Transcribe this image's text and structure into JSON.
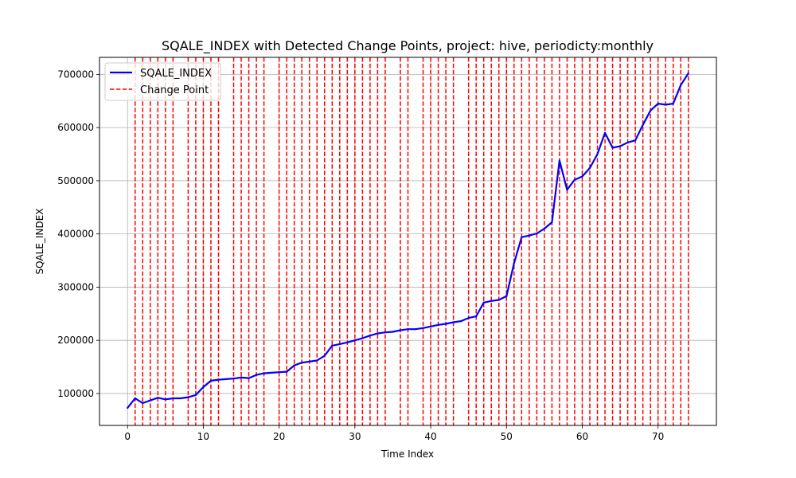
{
  "chart_data": {
    "type": "line",
    "title": "SQALE_INDEX with Detected Change Points, project: hive, periodicty:monthly",
    "xlabel": "Time Index",
    "ylabel": "SQALE_INDEX",
    "xlim": [
      -3.7,
      77.7
    ],
    "ylim": [
      40000,
      732000
    ],
    "x_ticks": [
      0,
      10,
      20,
      30,
      40,
      50,
      60,
      70
    ],
    "y_ticks": [
      100000,
      200000,
      300000,
      400000,
      500000,
      600000,
      700000
    ],
    "y_tick_labels": [
      "100000",
      "200000",
      "300000",
      "400000",
      "500000",
      "600000",
      "700000"
    ],
    "x_tick_labels": [
      "0",
      "10",
      "20",
      "30",
      "40",
      "50",
      "60",
      "70"
    ],
    "grid": true,
    "legend_position": "top-left",
    "series": [
      {
        "name": "SQALE_INDEX",
        "color": "#0000ff",
        "style": "solid",
        "x": [
          0,
          1,
          2,
          3,
          4,
          5,
          6,
          7,
          8,
          9,
          10,
          11,
          12,
          13,
          14,
          15,
          16,
          17,
          18,
          19,
          20,
          21,
          22,
          23,
          24,
          25,
          26,
          27,
          28,
          29,
          30,
          31,
          32,
          33,
          34,
          35,
          36,
          37,
          38,
          39,
          40,
          41,
          42,
          43,
          44,
          45,
          46,
          47,
          48,
          49,
          50,
          51,
          52,
          53,
          54,
          55,
          56,
          57,
          58,
          59,
          60,
          61,
          62,
          63,
          64,
          65,
          66,
          67,
          68,
          69,
          70,
          71,
          72,
          73,
          74
        ],
        "values": [
          73000,
          91000,
          82000,
          87000,
          92000,
          89000,
          91000,
          91000,
          93000,
          97000,
          112000,
          124000,
          126000,
          127000,
          128000,
          130000,
          129000,
          135000,
          138000,
          139000,
          140000,
          141000,
          153000,
          158000,
          160000,
          162000,
          171000,
          190000,
          193000,
          196000,
          200000,
          204000,
          209000,
          213000,
          215000,
          216000,
          219000,
          221000,
          221000,
          223000,
          226000,
          229000,
          231000,
          234000,
          236000,
          242000,
          245000,
          271000,
          274000,
          276000,
          283000,
          345000,
          394000,
          397000,
          401000,
          410000,
          422000,
          538000,
          483000,
          502000,
          508000,
          524000,
          550000,
          590000,
          562000,
          565000,
          572000,
          576000,
          605000,
          632000,
          645000,
          643000,
          645000,
          680000,
          702000
        ]
      },
      {
        "name": "Change Point",
        "color": "#ff0000",
        "style": "dashed",
        "x": [
          1,
          2,
          3,
          4,
          5,
          6,
          8,
          9,
          10,
          11,
          12,
          14,
          15,
          16,
          17,
          18,
          20,
          21,
          22,
          23,
          24,
          25,
          26,
          27,
          28,
          29,
          30,
          31,
          32,
          33,
          34,
          36,
          37,
          39,
          40,
          41,
          42,
          43,
          45,
          46,
          47,
          48,
          49,
          50,
          51,
          52,
          53,
          54,
          55,
          56,
          57,
          58,
          59,
          60,
          61,
          62,
          63,
          64,
          65,
          66,
          67,
          68,
          69,
          70,
          71,
          72,
          73,
          74
        ]
      }
    ]
  }
}
